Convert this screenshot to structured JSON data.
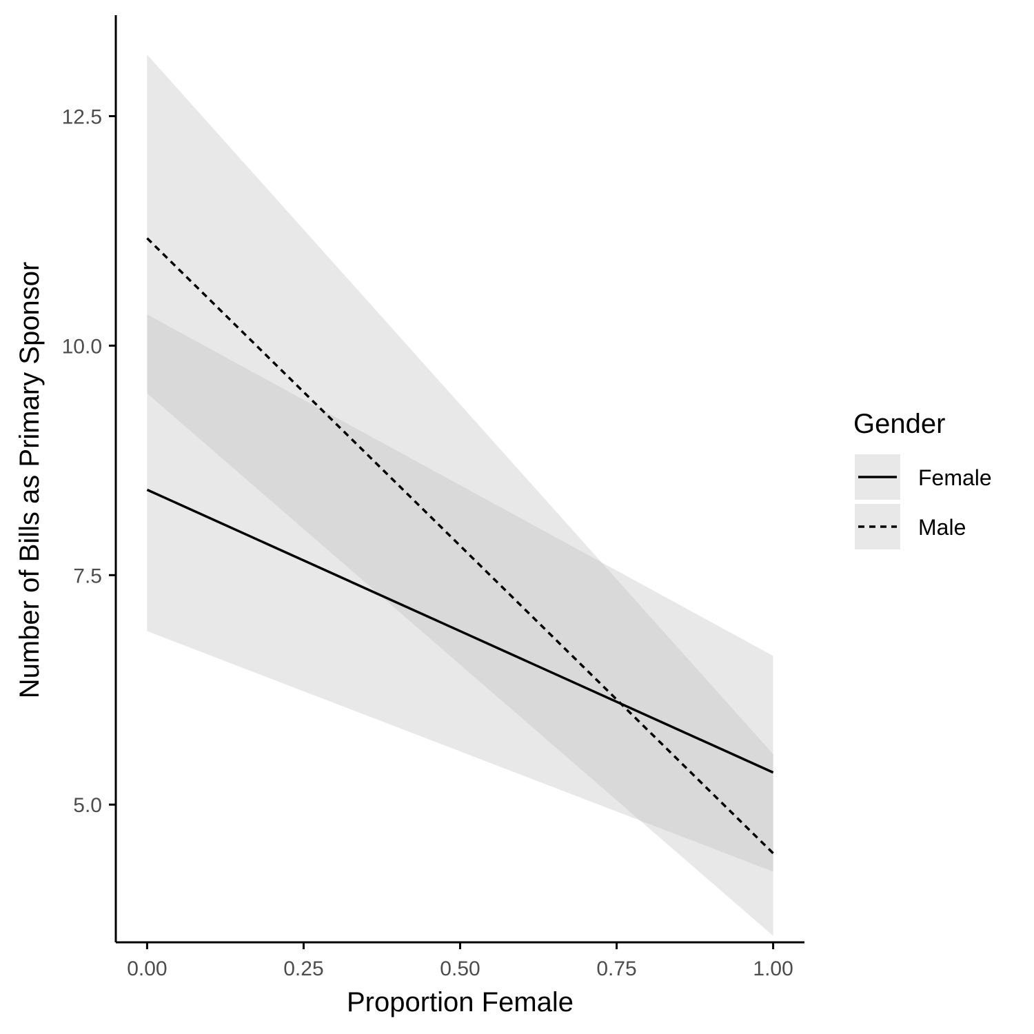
{
  "chart_data": {
    "type": "line",
    "title": "",
    "xlabel": "Proportion Female",
    "ylabel": "Number of Bills as Primary Sponsor",
    "xlim": [
      -0.05,
      1.05
    ],
    "ylim": [
      3.5,
      13.6
    ],
    "x_ticks": [
      0,
      0.25,
      0.5,
      0.75,
      1
    ],
    "x_tick_labels": [
      "0.00",
      "0.25",
      "0.50",
      "0.75",
      "1.00"
    ],
    "y_ticks": [
      5,
      7.5,
      10,
      12.5
    ],
    "y_tick_labels": [
      "5.0",
      "7.5",
      "10.0",
      "12.5"
    ],
    "grid": false,
    "legend": {
      "title": "Gender",
      "position": "right",
      "entries": [
        {
          "label": "Female",
          "linetype": "solid"
        },
        {
          "label": "Male",
          "linetype": "dashed"
        }
      ]
    },
    "series": [
      {
        "name": "Female",
        "linetype": "solid",
        "x": [
          0,
          1
        ],
        "y": [
          8.43,
          5.35
        ],
        "ci_lower": [
          6.89,
          4.27
        ],
        "ci_upper": [
          10.34,
          6.62
        ]
      },
      {
        "name": "Male",
        "linetype": "dashed",
        "x": [
          0,
          1
        ],
        "y": [
          11.17,
          4.47
        ],
        "ci_lower": [
          9.48,
          3.57
        ],
        "ci_upper": [
          13.17,
          5.55
        ]
      }
    ],
    "colors": {
      "line": "#000000",
      "ribbon": "#bebebe",
      "ribbon_opacity": 0.35,
      "legend_key_bg": "#e8e8e8",
      "tick_text": "#4d4d4d",
      "axis": "#000000"
    }
  }
}
